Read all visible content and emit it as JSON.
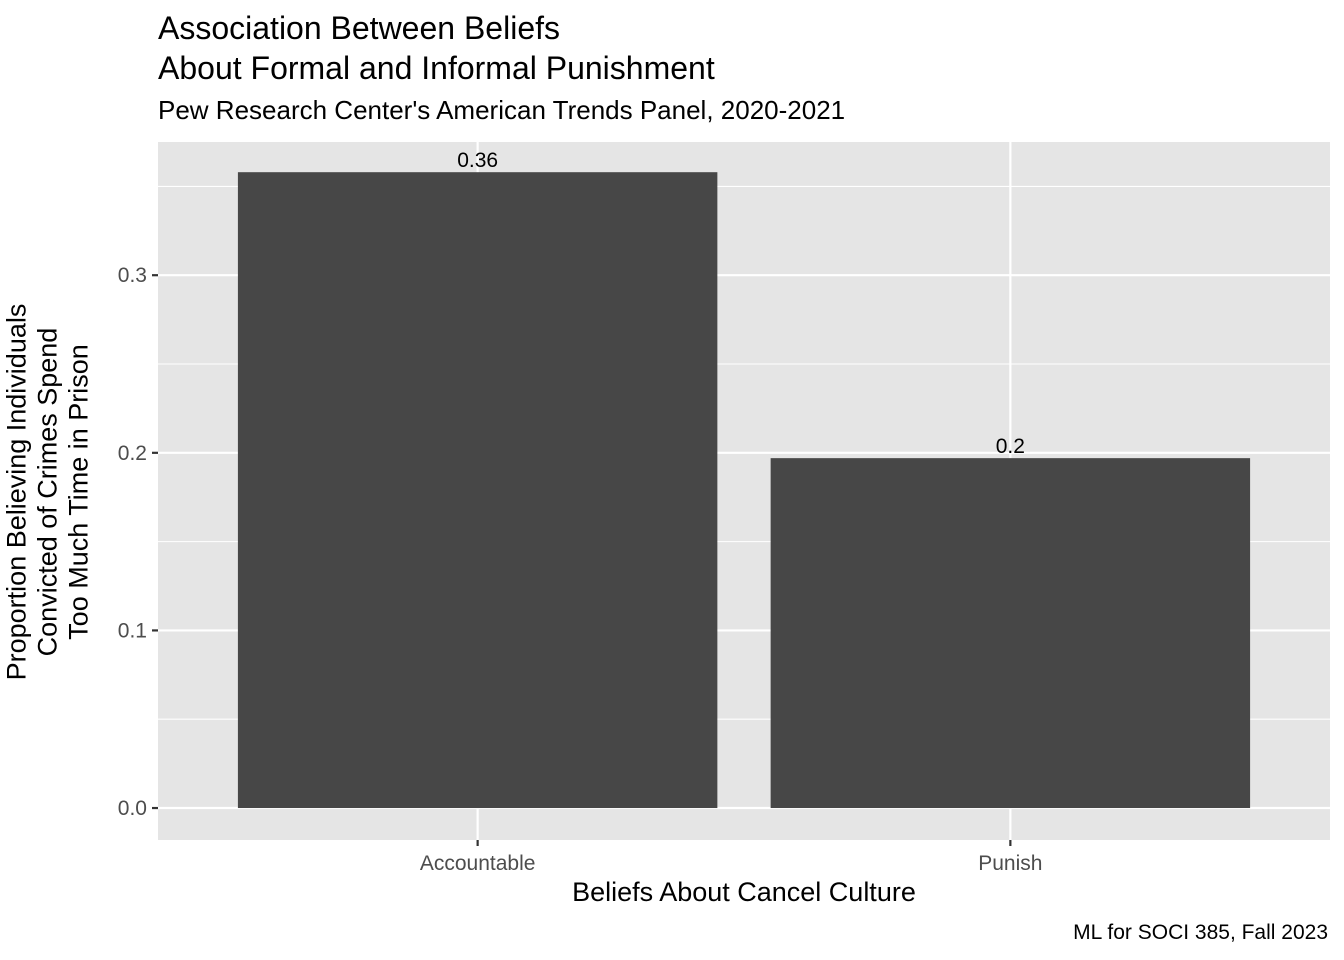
{
  "chart_data": {
    "type": "bar",
    "title": "Association Between Beliefs\nAbout Formal and Informal Punishment",
    "title_lines": [
      "Association Between Beliefs",
      "About Formal and Informal Punishment"
    ],
    "subtitle": "Pew Research Center's American Trends Panel, 2020-2021",
    "caption": "ML for SOCI 385, Fall 2023",
    "xlabel": "Beliefs About Cancel Culture",
    "ylabel_lines": [
      "Proportion Believing Individuals",
      "Convicted of Crimes Spend",
      "Too Much Time in Prison"
    ],
    "categories": [
      "Accountable",
      "Punish"
    ],
    "values": [
      0.358,
      0.197
    ],
    "data_labels": [
      "0.36",
      "0.2"
    ],
    "ylim": [
      -0.018,
      0.375
    ],
    "yticks": [
      0.0,
      0.1,
      0.2,
      0.3
    ],
    "ytick_labels": [
      "0.0",
      "0.1",
      "0.2",
      "0.3"
    ],
    "grid": true,
    "legend": "none",
    "colors": {
      "bar": "#474747",
      "panel": "#e5e5e5",
      "grid": "#ffffff",
      "axis_text": "#4d4d4d",
      "tick": "#333333"
    }
  }
}
